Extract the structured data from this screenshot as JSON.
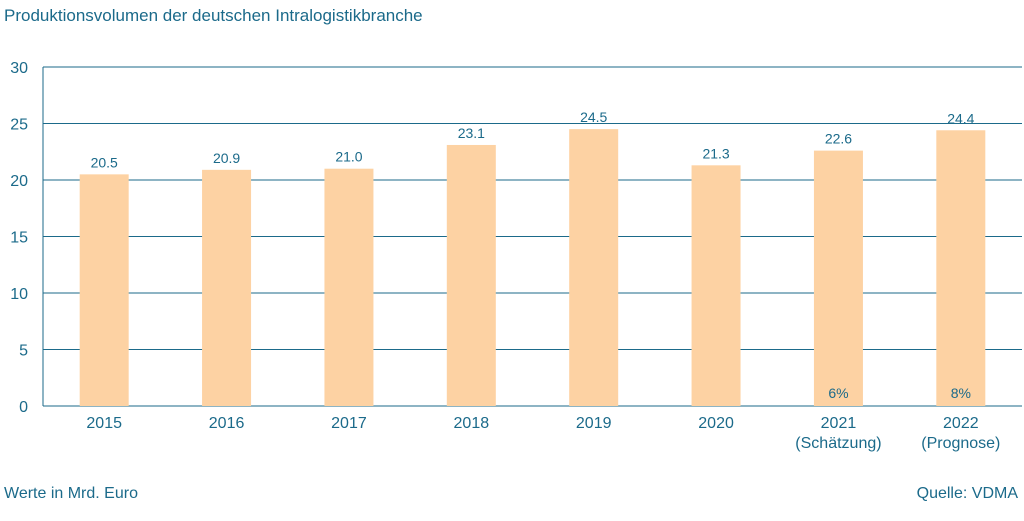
{
  "chart_data": {
    "type": "bar",
    "title": "Produktionsvolumen der deutschen Intralogistikbranche",
    "categories": [
      "2015",
      "2016",
      "2017",
      "2018",
      "2019",
      "2020",
      "2021",
      "2022"
    ],
    "category_sublabels": [
      "",
      "",
      "",
      "",
      "",
      "",
      "(Schätzung)",
      "(Prognose)"
    ],
    "values": [
      20.5,
      20.9,
      21.0,
      23.1,
      24.5,
      21.3,
      22.6,
      24.4
    ],
    "value_labels": [
      "20.5",
      "20.9",
      "21.0",
      "23.1",
      "24.5",
      "21.3",
      "22.6",
      "24.4"
    ],
    "inner_labels": [
      "",
      "",
      "",
      "",
      "",
      "",
      "6%",
      "8%"
    ],
    "ylim": [
      0,
      30
    ],
    "yticks": [
      0,
      5,
      10,
      15,
      20,
      25,
      30
    ],
    "grid": true,
    "colors": {
      "bar": "#fdd2a3",
      "grid": "#1b6a8a",
      "text": "#1b6a8a"
    }
  },
  "footer": {
    "unit_note": "Werte in Mrd. Euro",
    "source": "Quelle: VDMA"
  }
}
